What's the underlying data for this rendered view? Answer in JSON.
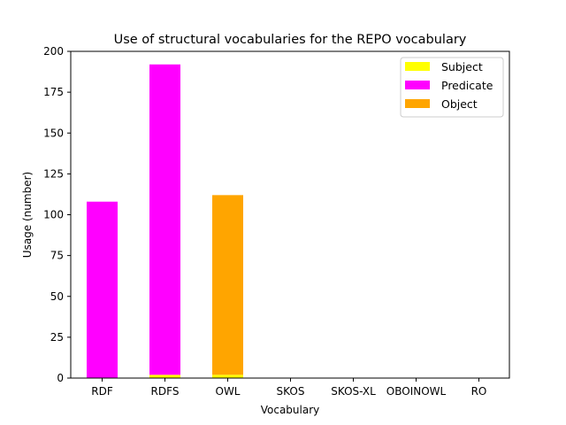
{
  "chart_data": {
    "type": "bar",
    "stacked": true,
    "title": "Use of structural vocabularies for the REPO vocabulary",
    "xlabel": "Vocabulary",
    "ylabel": "Usage (number)",
    "categories": [
      "RDF",
      "RDFS",
      "OWL",
      "SKOS",
      "SKOS-XL",
      "OBOINOWL",
      "RO"
    ],
    "ylim": [
      0,
      200
    ],
    "yticks": [
      0,
      25,
      50,
      75,
      100,
      125,
      150,
      175,
      200
    ],
    "grid": false,
    "legend_position": "top-right",
    "series": [
      {
        "name": "Subject",
        "color": "#ffff00",
        "values": [
          0,
          2,
          2,
          0,
          0,
          0,
          0
        ]
      },
      {
        "name": "Predicate",
        "color": "#ff00ff",
        "values": [
          108,
          190,
          0,
          0,
          0,
          0,
          0
        ]
      },
      {
        "name": "Object",
        "color": "#ffa500",
        "values": [
          0,
          0,
          110,
          0,
          0,
          0,
          0
        ]
      }
    ]
  }
}
